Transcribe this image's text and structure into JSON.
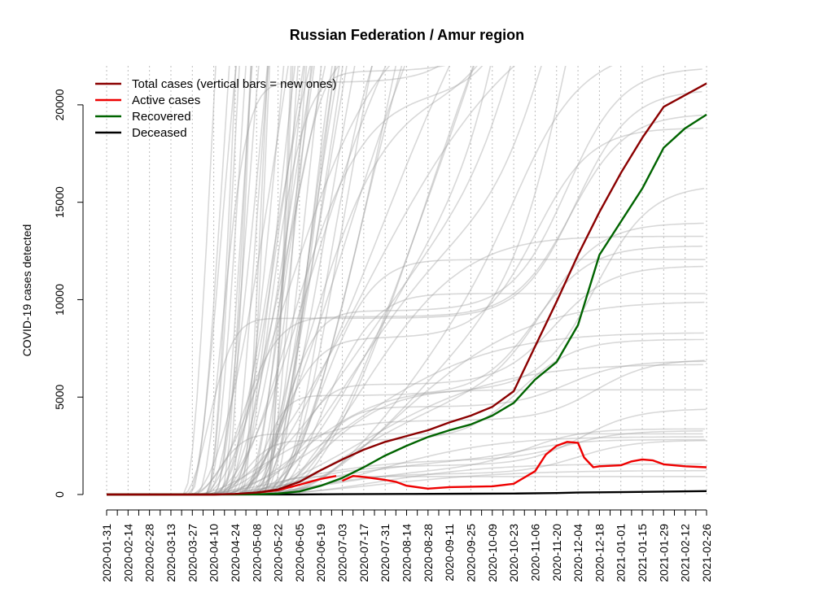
{
  "chart_data": {
    "type": "line",
    "title": "Russian Federation / Amur region",
    "xlabel": "",
    "ylabel": "COVID-19 cases detected",
    "x_ticks": [
      "2020-01-31",
      "2020-02-14",
      "2020-02-28",
      "2020-03-13",
      "2020-03-27",
      "2020-04-10",
      "2020-04-24",
      "2020-05-08",
      "2020-05-22",
      "2020-06-05",
      "2020-06-19",
      "2020-07-03",
      "2020-07-17",
      "2020-07-31",
      "2020-08-14",
      "2020-08-28",
      "2020-09-11",
      "2020-09-25",
      "2020-10-09",
      "2020-10-23",
      "2020-11-06",
      "2020-11-20",
      "2020-12-04",
      "2020-12-18",
      "2021-01-01",
      "2021-01-15",
      "2021-01-29",
      "2021-02-12",
      "2021-02-26"
    ],
    "y_ticks": [
      "0",
      "5000",
      "10000",
      "15000",
      "20000"
    ],
    "xlim": [
      "2020-01-31",
      "2021-02-26"
    ],
    "ylim": [
      0,
      22000
    ],
    "grid": "vertical dotted at tick dates",
    "legend_position": "top-left",
    "colors": {
      "total": "#8b0000",
      "active": "#ee0000",
      "recovered": "#006400",
      "deceased": "#000000",
      "background_regions": "#999999"
    },
    "series": [
      {
        "name": "Total cases (vertical bars = new ones)",
        "color": "#8b0000",
        "points": [
          [
            "2020-01-31",
            0
          ],
          [
            "2020-04-10",
            0
          ],
          [
            "2020-04-24",
            30
          ],
          [
            "2020-05-08",
            100
          ],
          [
            "2020-05-22",
            260
          ],
          [
            "2020-06-05",
            650
          ],
          [
            "2020-06-19",
            1250
          ],
          [
            "2020-07-03",
            1800
          ],
          [
            "2020-07-17",
            2300
          ],
          [
            "2020-07-31",
            2700
          ],
          [
            "2020-08-14",
            3000
          ],
          [
            "2020-08-28",
            3300
          ],
          [
            "2020-09-11",
            3700
          ],
          [
            "2020-09-25",
            4050
          ],
          [
            "2020-10-09",
            4500
          ],
          [
            "2020-10-23",
            5300
          ],
          [
            "2020-11-06",
            7600
          ],
          [
            "2020-11-20",
            9900
          ],
          [
            "2020-12-04",
            12300
          ],
          [
            "2020-12-18",
            14500
          ],
          [
            "2021-01-01",
            16500
          ],
          [
            "2021-01-15",
            18300
          ],
          [
            "2021-01-29",
            19900
          ],
          [
            "2021-02-12",
            20500
          ],
          [
            "2021-02-26",
            21100
          ]
        ]
      },
      {
        "name": "Active cases",
        "color": "#ee0000",
        "segments": [
          [
            [
              "2020-01-31",
              0
            ],
            [
              "2020-04-10",
              0
            ],
            [
              "2020-04-24",
              25
            ],
            [
              "2020-05-08",
              90
            ],
            [
              "2020-05-22",
              220
            ],
            [
              "2020-06-05",
              500
            ],
            [
              "2020-06-19",
              800
            ],
            [
              "2020-06-29",
              950
            ]
          ],
          [
            [
              "2020-07-03",
              700
            ],
            [
              "2020-07-10",
              950
            ],
            [
              "2020-07-17",
              900
            ],
            [
              "2020-07-31",
              750
            ],
            [
              "2020-08-07",
              650
            ],
            [
              "2020-08-14",
              450
            ],
            [
              "2020-08-28",
              300
            ],
            [
              "2020-09-11",
              380
            ],
            [
              "2020-09-25",
              400
            ],
            [
              "2020-10-09",
              420
            ],
            [
              "2020-10-23",
              550
            ],
            [
              "2020-11-06",
              1200
            ],
            [
              "2020-11-13",
              2050
            ],
            [
              "2020-11-20",
              2500
            ],
            [
              "2020-11-27",
              2700
            ],
            [
              "2020-12-04",
              2650
            ],
            [
              "2020-12-08",
              1900
            ],
            [
              "2020-12-14",
              1400
            ],
            [
              "2020-12-18",
              1450
            ],
            [
              "2021-01-01",
              1500
            ],
            [
              "2021-01-08",
              1700
            ],
            [
              "2021-01-15",
              1800
            ],
            [
              "2021-01-22",
              1750
            ],
            [
              "2021-01-29",
              1550
            ],
            [
              "2021-02-12",
              1450
            ],
            [
              "2021-02-26",
              1400
            ]
          ]
        ]
      },
      {
        "name": "Recovered",
        "color": "#006400",
        "points": [
          [
            "2020-01-31",
            0
          ],
          [
            "2020-05-08",
            10
          ],
          [
            "2020-05-22",
            50
          ],
          [
            "2020-06-05",
            160
          ],
          [
            "2020-06-19",
            450
          ],
          [
            "2020-07-03",
            850
          ],
          [
            "2020-07-17",
            1400
          ],
          [
            "2020-07-31",
            2000
          ],
          [
            "2020-08-14",
            2500
          ],
          [
            "2020-08-28",
            2950
          ],
          [
            "2020-09-11",
            3300
          ],
          [
            "2020-09-25",
            3600
          ],
          [
            "2020-10-09",
            4050
          ],
          [
            "2020-10-23",
            4700
          ],
          [
            "2020-11-06",
            5900
          ],
          [
            "2020-11-20",
            6800
          ],
          [
            "2020-12-04",
            8700
          ],
          [
            "2020-12-18",
            12300
          ],
          [
            "2021-01-01",
            14000
          ],
          [
            "2021-01-15",
            15700
          ],
          [
            "2021-01-29",
            17800
          ],
          [
            "2021-02-12",
            18800
          ],
          [
            "2021-02-26",
            19500
          ]
        ]
      },
      {
        "name": "Deceased",
        "color": "#000000",
        "points": [
          [
            "2020-01-31",
            0
          ],
          [
            "2020-06-05",
            5
          ],
          [
            "2020-07-03",
            15
          ],
          [
            "2020-08-14",
            30
          ],
          [
            "2020-09-25",
            40
          ],
          [
            "2020-10-23",
            50
          ],
          [
            "2020-11-20",
            75
          ],
          [
            "2020-12-04",
            100
          ],
          [
            "2021-01-01",
            120
          ],
          [
            "2021-01-29",
            150
          ],
          [
            "2021-02-26",
            175
          ]
        ]
      }
    ]
  }
}
